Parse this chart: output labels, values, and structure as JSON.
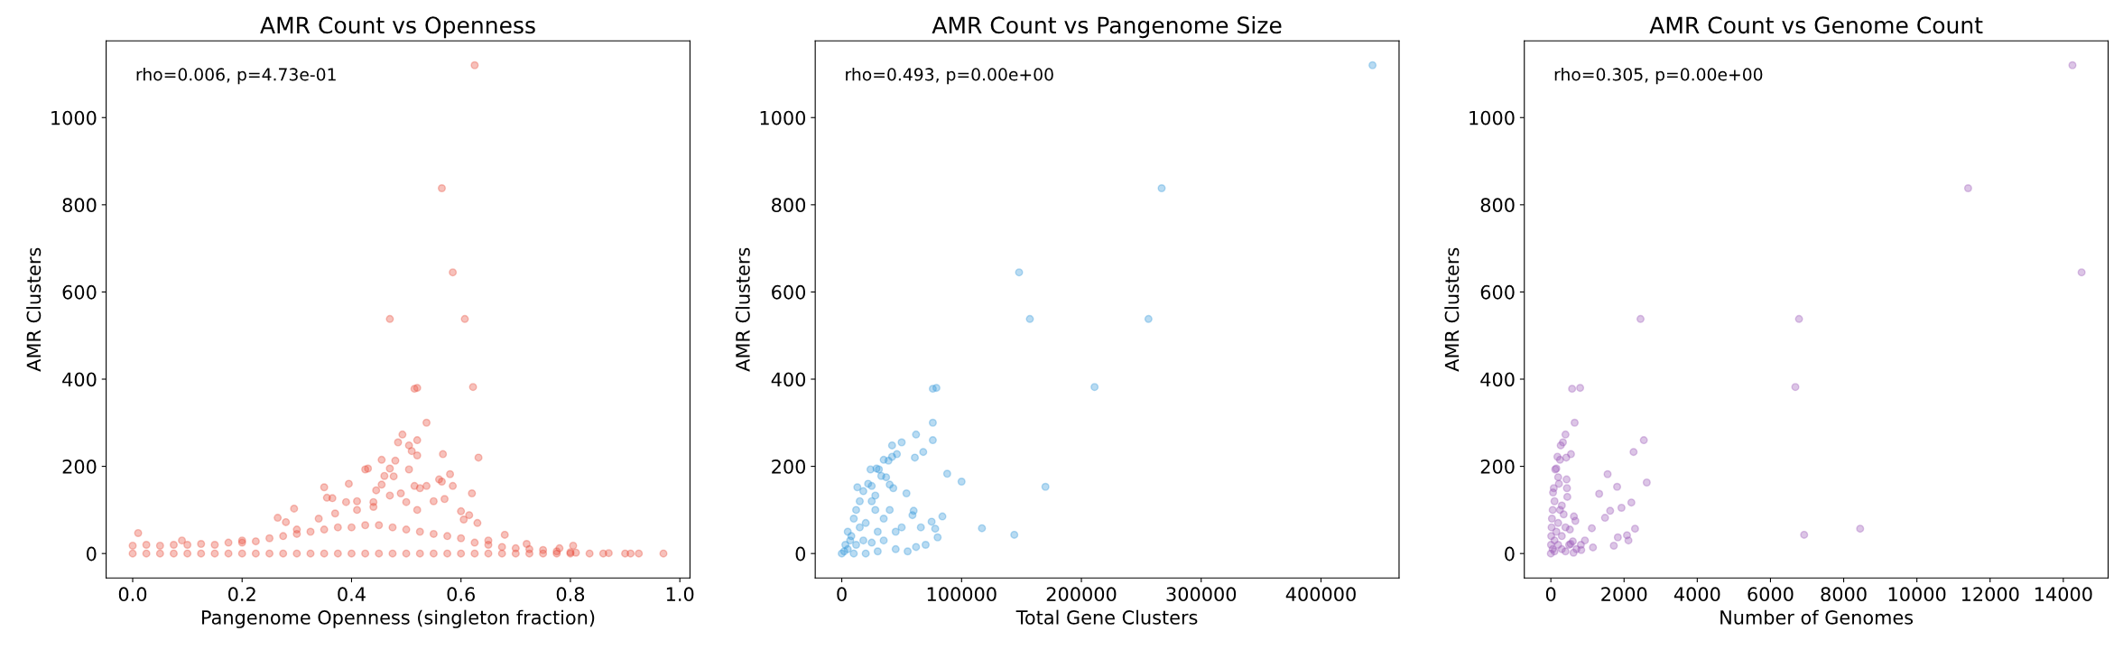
{
  "chart_data": [
    {
      "type": "scatter",
      "title": "AMR Count vs Openness",
      "xlabel": "Pangenome Openness (singleton fraction)",
      "ylabel": "AMR Clusters",
      "annotations": [
        "rho=0.006, p=4.73e-01"
      ],
      "marker": "circle",
      "xlim": [
        -0.0485,
        1.0185
      ],
      "ylim": [
        -56,
        1176
      ],
      "xticks": [
        {
          "value": 0,
          "label": "0.0"
        },
        {
          "value": 0.2,
          "label": "0.2"
        },
        {
          "value": 0.4,
          "label": "0.4"
        },
        {
          "value": 0.6,
          "label": "0.6"
        },
        {
          "value": 0.8,
          "label": "0.8"
        },
        {
          "value": 1,
          "label": "1.0"
        }
      ],
      "yticks": [
        0,
        200,
        400,
        600,
        800,
        1000
      ],
      "series": [
        {
          "color": "#e74c3c",
          "x": [
            0.625,
            0.565,
            0.585,
            0.47,
            0.607,
            0.515,
            0.52,
            0.622,
            0.537,
            0.493,
            0.485,
            0.52,
            0.505,
            0.51,
            0.567,
            0.632,
            0.52,
            0.455,
            0.48,
            0.425,
            0.43,
            0.58,
            0.505,
            0.47,
            0.477,
            0.46,
            0.56,
            0.565,
            0.395,
            0.455,
            0.35,
            0.515,
            0.537,
            0.585,
            0.525,
            0.445,
            0.49,
            0.62,
            0.355,
            0.365,
            0.39,
            0.41,
            0.44,
            0.47,
            0.5,
            0.55,
            0.57,
            0.295,
            0.41,
            0.44,
            0.52,
            0.6,
            0.605,
            0.615,
            0.63,
            0.265,
            0.28,
            0.34,
            0.37,
            0.68,
            0.01,
            0.09,
            0.2,
            0.3,
            0.65,
            0.72,
            0.78,
            0.805,
            0.81,
            0.835,
            0.86,
            0.87,
            0.9,
            0.91,
            0.925,
            0.97,
            0,
            0.025,
            0.05,
            0.075,
            0.1,
            0.125,
            0.15,
            0.175,
            0.2,
            0.225,
            0.25,
            0.275,
            0.3,
            0.325,
            0.35,
            0.375,
            0.4,
            0.425,
            0.45,
            0.475,
            0.5,
            0.525,
            0.55,
            0.575,
            0.6,
            0.625,
            0.65,
            0.675,
            0.7,
            0.725,
            0.75,
            0.775,
            0.8,
            0,
            0.025,
            0.05,
            0.075,
            0.1,
            0.125,
            0.15,
            0.175,
            0.2,
            0.225,
            0.25,
            0.275,
            0.3,
            0.325,
            0.35,
            0.375,
            0.4,
            0.425,
            0.45,
            0.475,
            0.5,
            0.525,
            0.55,
            0.575,
            0.6,
            0.625,
            0.65,
            0.675,
            0.7,
            0.725,
            0.75,
            0.775,
            0.8
          ],
          "values": [
            1120,
            838,
            645,
            538,
            538,
            378,
            380,
            382,
            300,
            273,
            255,
            260,
            248,
            235,
            228,
            220,
            225,
            215,
            213,
            193,
            195,
            182,
            193,
            195,
            177,
            178,
            170,
            165,
            160,
            158,
            152,
            155,
            155,
            155,
            150,
            145,
            138,
            138,
            128,
            127,
            118,
            120,
            118,
            133,
            118,
            120,
            125,
            103,
            100,
            107,
            100,
            97,
            78,
            88,
            70,
            82,
            72,
            80,
            92,
            43,
            47,
            30,
            30,
            55,
            30,
            22,
            12,
            18,
            2,
            0,
            0,
            1,
            0,
            0,
            0,
            0,
            0,
            0,
            0,
            0,
            0,
            0,
            0,
            0,
            0,
            0,
            0,
            0,
            0,
            0,
            0,
            0,
            0,
            0,
            0,
            0,
            0,
            0,
            0,
            0,
            0,
            0,
            0,
            0,
            0,
            0,
            0,
            0,
            0,
            18,
            20,
            18,
            20,
            20,
            22,
            20,
            25,
            25,
            28,
            35,
            40,
            45,
            50,
            55,
            60,
            60,
            65,
            65,
            60,
            55,
            50,
            45,
            40,
            35,
            25,
            20,
            15,
            12,
            10,
            8,
            5,
            3
          ]
        }
      ]
    },
    {
      "type": "scatter",
      "title": "AMR Count vs Pangenome Size",
      "xlabel": "Total Gene Clusters",
      "ylabel": "AMR Clusters",
      "annotations": [
        "rho=0.493, p=0.00e+00"
      ],
      "marker": "circle",
      "xlim": [
        -22150,
        465150
      ],
      "ylim": [
        -56,
        1176
      ],
      "xticks": [
        0,
        100000,
        200000,
        300000,
        400000
      ],
      "yticks": [
        0,
        200,
        400,
        600,
        800,
        1000
      ],
      "series": [
        {
          "color": "#3498db",
          "x": [
            443000,
            267000,
            148000,
            157000,
            256000,
            211000,
            76000,
            79000,
            76000,
            62000,
            76000,
            50000,
            42000,
            46000,
            42000,
            68000,
            61000,
            35000,
            39000,
            88000,
            100000,
            170000,
            24000,
            29000,
            31000,
            33000,
            37000,
            22000,
            25000,
            40000,
            43000,
            54000,
            13000,
            18000,
            28000,
            60000,
            59000,
            84000,
            75000,
            78000,
            117000,
            144000,
            80000,
            66000,
            70000,
            62000,
            45000,
            55000,
            35000,
            40000,
            25000,
            15000,
            12000,
            5000,
            8000,
            10000,
            15000,
            20000,
            30000,
            2000,
            0,
            3000,
            5000,
            10000,
            20000,
            30000,
            7000,
            12000,
            18000,
            25000,
            45000,
            50000,
            35000,
            28000
          ],
          "values": [
            1120,
            838,
            645,
            538,
            538,
            382,
            378,
            380,
            300,
            273,
            260,
            255,
            248,
            228,
            222,
            233,
            220,
            215,
            213,
            183,
            165,
            153,
            193,
            195,
            193,
            178,
            175,
            160,
            155,
            158,
            150,
            138,
            152,
            143,
            133,
            98,
            88,
            85,
            73,
            57,
            58,
            43,
            37,
            60,
            20,
            15,
            10,
            5,
            30,
            100,
            120,
            120,
            100,
            50,
            40,
            80,
            60,
            70,
            50,
            5,
            0,
            20,
            10,
            0,
            0,
            5,
            30,
            20,
            30,
            25,
            50,
            60,
            80,
            100
          ]
        }
      ]
    },
    {
      "type": "scatter",
      "title": "AMR Count vs Genome Count",
      "xlabel": "Number of Genomes",
      "ylabel": "AMR Clusters",
      "annotations": [
        "rho=0.305, p=0.00e+00"
      ],
      "marker": "circle",
      "xlim": [
        -725,
        15225
      ],
      "ylim": [
        -56,
        1176
      ],
      "xticks": [
        0,
        2000,
        4000,
        6000,
        8000,
        10000,
        12000,
        14000
      ],
      "yticks": [
        0,
        200,
        400,
        600,
        800,
        1000
      ],
      "series": [
        {
          "color": "#9b59b6",
          "x": [
            14250,
            11400,
            14500,
            2450,
            6780,
            6680,
            580,
            800,
            650,
            400,
            330,
            270,
            2540,
            2260,
            550,
            180,
            420,
            250,
            120,
            150,
            1550,
            1810,
            2620,
            1320,
            2200,
            1930,
            1620,
            1480,
            2300,
            1830,
            2080,
            2120,
            1720,
            1150,
            1120,
            6920,
            8450,
            930,
            820,
            830,
            700,
            600,
            540,
            620,
            520,
            630,
            670,
            430,
            440,
            450,
            200,
            220,
            80,
            60,
            100,
            50,
            30,
            20,
            10,
            5,
            0,
            50,
            100,
            150,
            200,
            250,
            300,
            350,
            400,
            300,
            200,
            100,
            300,
            400,
            500
          ],
          "values": [
            1120,
            838,
            645,
            538,
            538,
            382,
            378,
            380,
            300,
            273,
            255,
            248,
            260,
            233,
            228,
            222,
            220,
            215,
            193,
            195,
            182,
            153,
            163,
            137,
            117,
            105,
            98,
            82,
            57,
            37,
            42,
            30,
            18,
            14,
            58,
            43,
            57,
            30,
            20,
            8,
            10,
            28,
            22,
            2,
            55,
            85,
            75,
            170,
            150,
            130,
            175,
            160,
            150,
            140,
            120,
            100,
            80,
            60,
            40,
            20,
            0,
            10,
            30,
            50,
            70,
            100,
            110,
            90,
            60,
            40,
            20,
            5,
            10,
            5,
            20
          ]
        }
      ]
    }
  ]
}
